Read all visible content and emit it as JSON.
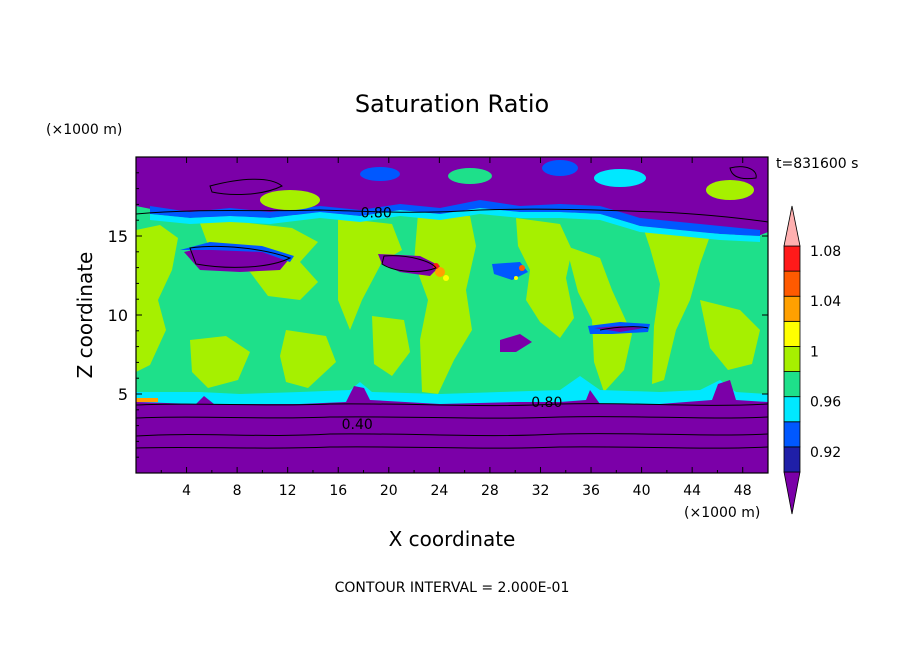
{
  "chart_data": {
    "type": "heatmap",
    "title": "Saturation Ratio",
    "xlabel": "X coordinate",
    "ylabel": "Z coordinate",
    "x_unit": "(×1000 m)",
    "y_unit": "(×1000 m)",
    "time_label": "t=831600 s",
    "footer": "CONTOUR INTERVAL = 2.000E-01",
    "xlim": [
      0,
      50
    ],
    "ylim": [
      0,
      20
    ],
    "x_ticks": [
      "4",
      "8",
      "12",
      "16",
      "20",
      "24",
      "28",
      "32",
      "36",
      "40",
      "44",
      "48"
    ],
    "y_ticks": [
      "5",
      "10",
      "15"
    ],
    "contour_labels": [
      {
        "text": "0.80",
        "x": 19.0,
        "z": 16.5
      },
      {
        "text": "0.80",
        "x": 32.5,
        "z": 4.5
      },
      {
        "text": "0.40",
        "x": 17.5,
        "z": 3.1
      }
    ],
    "colorbar": {
      "labels": [
        "1.08",
        "1.04",
        "1",
        "0.96",
        "0.92"
      ],
      "colors": [
        "#7b00a8",
        "#1f1fa8",
        "#0058ff",
        "#00e8ff",
        "#1ee08a",
        "#a6f000",
        "#ffff00",
        "#ffa000",
        "#ff5a00",
        "#ff1a1a",
        "#ffb0b0"
      ]
    },
    "regions": [
      {
        "name": "lower-dry-layer",
        "x": [
          0,
          50
        ],
        "z": [
          0,
          4.8
        ],
        "level": "< 0.92"
      },
      {
        "name": "mid-troposphere-moist",
        "x": [
          0,
          50
        ],
        "z": [
          4.8,
          16.5
        ],
        "level": "0.96 - 1.02"
      },
      {
        "name": "upper-dry-layer",
        "x": [
          0,
          50
        ],
        "z": [
          16.5,
          20
        ],
        "level": "< 0.92"
      }
    ]
  }
}
